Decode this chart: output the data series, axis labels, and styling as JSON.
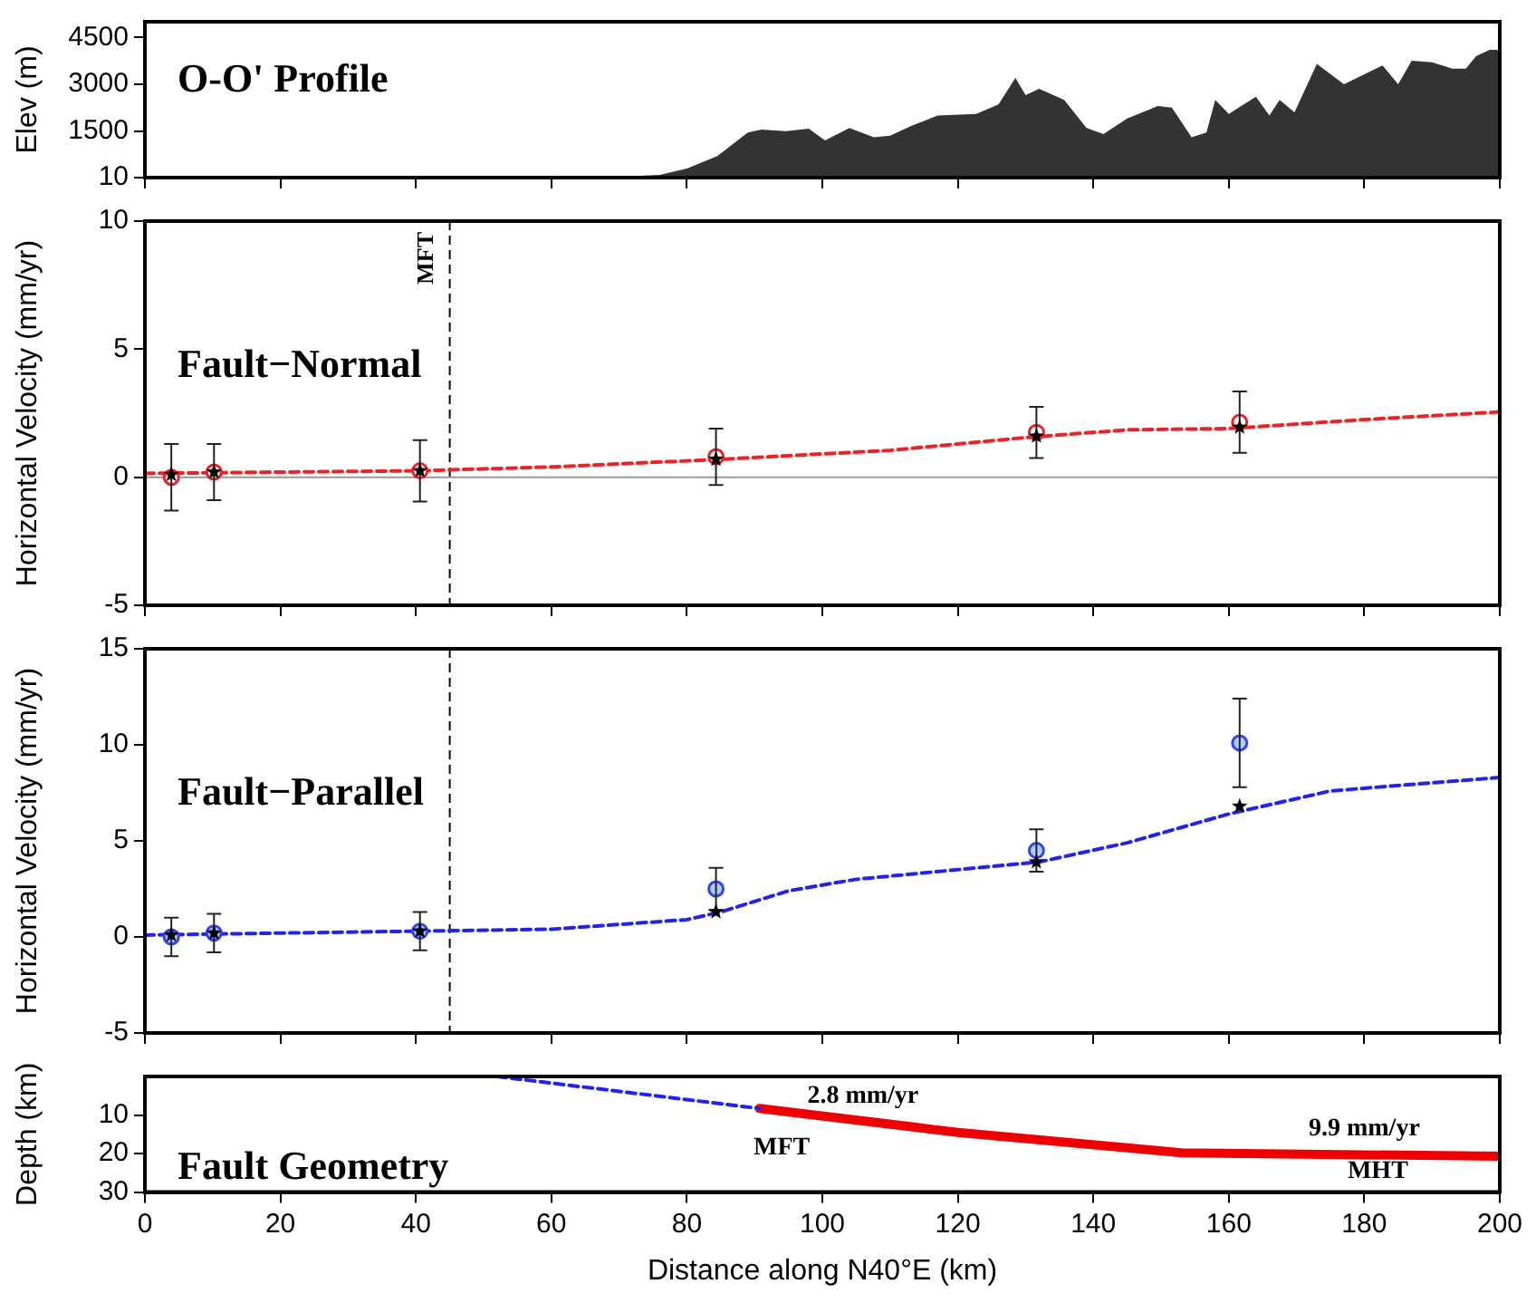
{
  "chart_data": [
    {
      "type": "area",
      "title": "O-O' Profile",
      "ylabel": "Elev (m)",
      "xlim": [
        0,
        200
      ],
      "ylim": [
        10,
        5000
      ],
      "xticks": [
        0,
        20,
        40,
        60,
        80,
        100,
        120,
        140,
        160,
        180,
        200
      ],
      "yticks": [
        10,
        1500,
        3000,
        4500
      ],
      "tick_labels": "y",
      "grid": false,
      "legend": false,
      "series": [
        {
          "color": "#333333",
          "x": [
            0,
            67,
            76,
            80,
            84.5,
            89,
            91,
            94.6,
            98,
            100.4,
            104,
            107.6,
            110,
            113,
            117,
            122.7,
            126,
            128.5,
            130,
            132,
            135.7,
            139,
            141.5,
            145,
            149.5,
            151.6,
            154.5,
            156.7,
            158,
            160,
            164,
            166,
            167.5,
            169.7,
            173,
            177,
            182.7,
            185,
            187,
            190,
            193,
            195,
            196.5,
            198.5,
            200
          ],
          "values": [
            10,
            10,
            100,
            300,
            700,
            1450,
            1550,
            1500,
            1580,
            1200,
            1600,
            1300,
            1350,
            1650,
            2000,
            2050,
            2350,
            3200,
            2650,
            2850,
            2500,
            1600,
            1400,
            1900,
            2300,
            2250,
            1300,
            1450,
            2500,
            2050,
            2600,
            2000,
            2500,
            2100,
            3650,
            3000,
            3600,
            3000,
            3750,
            3700,
            3500,
            3500,
            3900,
            4100,
            4100
          ]
        }
      ]
    },
    {
      "type": "scatter",
      "title": "Fault−Normal",
      "ylabel": "Horizontal Velocity (mm/yr)",
      "xlim": [
        0,
        200
      ],
      "ylim": [
        -5,
        10
      ],
      "xticks": [
        0,
        20,
        40,
        60,
        80,
        100,
        120,
        140,
        160,
        180,
        200
      ],
      "yticks": [
        -5,
        0,
        5,
        10
      ],
      "tick_labels": "y",
      "grid": false,
      "legend": false,
      "ref_lines": [
        {
          "axis": "x",
          "value": 45,
          "label": "MFT",
          "line_style": "dashed",
          "color": "#000000"
        },
        {
          "axis": "y",
          "value": 0,
          "color": "#999999"
        }
      ],
      "series": [
        {
          "type": "line",
          "color": "#ee2222",
          "line_style": "dashed",
          "marker": "none",
          "x": [
            0,
            40,
            60,
            85,
            110,
            130,
            145,
            160,
            180,
            200
          ],
          "values": [
            0.15,
            0.25,
            0.4,
            0.7,
            1.05,
            1.55,
            1.85,
            1.9,
            2.25,
            2.55
          ]
        },
        {
          "color": "#ee2222",
          "marker": "circle",
          "x": [
            3.9,
            10.2,
            40.6,
            84.3,
            131.6,
            161.6
          ],
          "values": [
            0,
            0.2,
            0.25,
            0.8,
            1.75,
            2.15
          ],
          "errors": [
            1.3,
            1.1,
            1.2,
            1.1,
            1.0,
            1.2
          ]
        },
        {
          "color": "#000000",
          "marker": "star",
          "x": [
            3.9,
            10.2,
            40.6,
            84.3,
            131.6,
            161.6
          ],
          "values": [
            0.1,
            0.2,
            0.25,
            0.7,
            1.6,
            1.95
          ]
        }
      ]
    },
    {
      "type": "scatter",
      "title": "Fault−Parallel",
      "ylabel": "Horizontal Velocity (mm/yr)",
      "xlim": [
        0,
        200
      ],
      "ylim": [
        -5,
        15
      ],
      "xticks": [
        0,
        20,
        40,
        60,
        80,
        100,
        120,
        140,
        160,
        180,
        200
      ],
      "yticks": [
        -5,
        0,
        5,
        10,
        15
      ],
      "tick_labels": "y",
      "grid": false,
      "legend": false,
      "ref_lines": [
        {
          "axis": "x",
          "value": 45,
          "line_style": "dashed",
          "color": "#000000"
        }
      ],
      "series": [
        {
          "type": "line",
          "color": "#2222ee",
          "line_style": "dashed",
          "marker": "none",
          "x": [
            0,
            40,
            60,
            80,
            85,
            95,
            105,
            120,
            132,
            145,
            160,
            175,
            200
          ],
          "values": [
            0.1,
            0.3,
            0.4,
            0.9,
            1.3,
            2.4,
            3.0,
            3.5,
            3.9,
            4.9,
            6.4,
            7.6,
            8.3
          ]
        },
        {
          "color": "#3344ee",
          "marker": "circle",
          "x": [
            3.9,
            10.2,
            40.6,
            84.3,
            131.6,
            161.6
          ],
          "values": [
            0,
            0.2,
            0.3,
            2.5,
            4.5,
            10.1
          ],
          "errors": [
            1.0,
            1.0,
            1.0,
            1.1,
            1.1,
            2.3
          ]
        },
        {
          "color": "#000000",
          "marker": "star",
          "x": [
            3.9,
            10.2,
            40.6,
            84.3,
            131.6,
            161.6
          ],
          "values": [
            0.1,
            0.2,
            0.3,
            1.3,
            3.9,
            6.8
          ]
        }
      ]
    },
    {
      "type": "line",
      "title": "Fault Geometry",
      "xlabel": "Distance along N40°E (km)",
      "ylabel": "Depth (km)",
      "xlim": [
        0,
        200
      ],
      "ylim": [
        30,
        0
      ],
      "xticks": [
        0,
        20,
        40,
        60,
        80,
        100,
        120,
        140,
        160,
        180,
        200
      ],
      "yticks": [
        10,
        20,
        30
      ],
      "grid": false,
      "legend": false,
      "marker": "none",
      "annotations": [
        "2.8 mm/yr",
        "MFT",
        "9.9 mm/yr",
        "MHT"
      ],
      "series": [
        {
          "color": "#2222ee",
          "line_style": "dashed",
          "x": [
            52,
            90.7
          ],
          "values": [
            0,
            8.3
          ]
        },
        {
          "color": "#ee0000",
          "line_style": "solid",
          "x": [
            90.7,
            120,
            145,
            153,
            200
          ],
          "values": [
            8.3,
            14.5,
            18.5,
            19.8,
            20.7
          ]
        }
      ]
    }
  ]
}
